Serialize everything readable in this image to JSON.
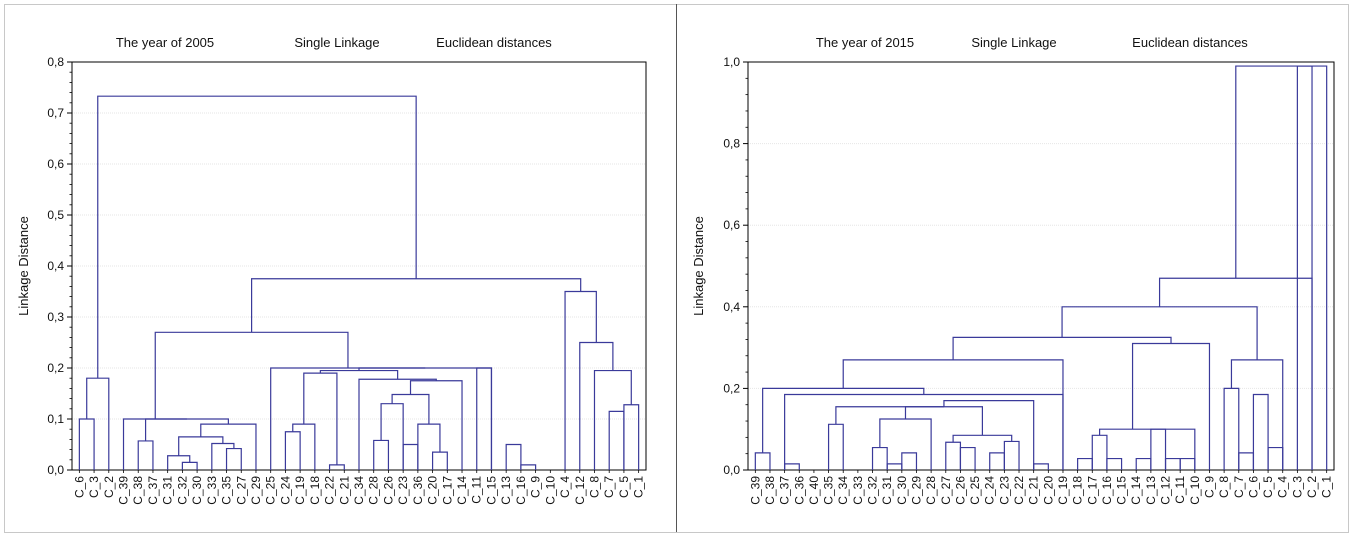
{
  "colors": {
    "tree": "#3a3a9a",
    "frame": "#c8c8c8",
    "grid": "#e6e6e6",
    "text": "#111111"
  },
  "chart_data": [
    {
      "type": "dendrogram",
      "titles": [
        "The year of 2005",
        "Single Linkage",
        "Euclidean distances"
      ],
      "xlabel": "",
      "ylabel": "Linkage Distance",
      "ylim": [
        0,
        0.8
      ],
      "yticks": [
        "0,0",
        "0,1",
        "0,2",
        "0,3",
        "0,4",
        "0,5",
        "0,6",
        "0,7",
        "0,8"
      ],
      "grid": true,
      "leaves": [
        "C_6",
        "C_3",
        "C_2",
        "C_39",
        "C_38",
        "C_37",
        "C_31",
        "C_32",
        "C_30",
        "C_33",
        "C_35",
        "C_27",
        "C_29",
        "C_25",
        "C_24",
        "C_19",
        "C_18",
        "C_22",
        "C_21",
        "C_34",
        "C_28",
        "C_26",
        "C_23",
        "C_36",
        "C_20",
        "C_17",
        "C_14",
        "C_11",
        "C_15",
        "C_13",
        "C_16",
        "C_9",
        "C_10",
        "C_4",
        "C_12",
        "C_8",
        "C_7",
        "C_5",
        "C_1"
      ],
      "merges": [
        [
          "C_9",
          "C_16",
          0.01
        ],
        [
          "C_32",
          "C_30",
          0.015
        ],
        [
          "C_22",
          "C_21",
          0.01
        ],
        [
          "C_25",
          "C_29",
          0.022
        ],
        [
          "C_31",
          1,
          0.03
        ],
        [
          "C_5",
          "C_1",
          0.128
        ],
        [
          "C_17",
          "C_14",
          0.035
        ],
        [
          "C_35",
          "C_27",
          0.042
        ],
        [
          "C_28",
          "C_26",
          0.058
        ],
        [
          "C_38",
          "C_37",
          0.058
        ],
        [
          "C_33",
          7,
          0.052
        ],
        [
          "C_13",
          0,
          0.05
        ],
        [
          "C_36",
          "C_20",
          0.09
        ],
        [
          12,
          6,
          0.135
        ],
        [
          "C_24",
          "C_19",
          0.075
        ],
        [
          14,
          "C_18",
          0.09
        ],
        [
          8,
          "C_23",
          0.13
        ],
        [
          16,
          13,
          0.148
        ],
        [
          4,
          "C_30_",
          0.065
        ],
        [
          4,
          10,
          0.092
        ],
        [
          "C_39",
          19,
          0.1
        ],
        [
          "C_6",
          "C_3",
          0.1
        ],
        [
          17,
          "C_11",
          0.175
        ],
        [
          2,
          "C_34",
          0.18
        ],
        [
          23,
          22,
          0.195
        ],
        [
          15,
          24,
          0.19
        ],
        [
          25,
          11,
          0.2
        ],
        [
          3,
          26,
          0.2
        ],
        [
          "C_7",
          "C_5",
          0.115
        ],
        [
          28,
          5,
          0.128
        ],
        [
          "C_8",
          29,
          0.195
        ],
        [
          "C_12",
          30,
          0.25
        ],
        [
          "C_4",
          31,
          0.35
        ],
        [
          "C_10",
          32,
          0.375
        ],
        [
          20,
          27,
          0.27
        ],
        [
          34,
          32,
          0.375
        ],
        [
          21,
          "C_2",
          0.18
        ],
        [
          36,
          35,
          0.733
        ]
      ]
    },
    {
      "type": "dendrogram",
      "titles": [
        "The year of 2015",
        "Single Linkage",
        "Euclidean distances"
      ],
      "xlabel": "",
      "ylabel": "Linkage Distance",
      "ylim": [
        0,
        1.0
      ],
      "yticks": [
        "0,0",
        "0,2",
        "0,4",
        "0,6",
        "0,8",
        "1,0"
      ],
      "grid": true,
      "leaves": [
        "C_39",
        "C_38",
        "C_37",
        "C_36",
        "C_40",
        "C_35",
        "C_34",
        "C_33",
        "C_32",
        "C_31",
        "C_30",
        "C_29",
        "C_28",
        "C_27",
        "C_26",
        "C_25",
        "C_24",
        "C_23",
        "C_22",
        "C_21",
        "C_20",
        "C_19",
        "C_18",
        "C_17",
        "C_16",
        "C_15",
        "C_14",
        "C_13",
        "C_12",
        "C_11",
        "C_10",
        "C_9",
        "C_8",
        "C_7",
        "C_6",
        "C_5",
        "C_4",
        "C_3",
        "C_2",
        "C_1"
      ]
    }
  ]
}
